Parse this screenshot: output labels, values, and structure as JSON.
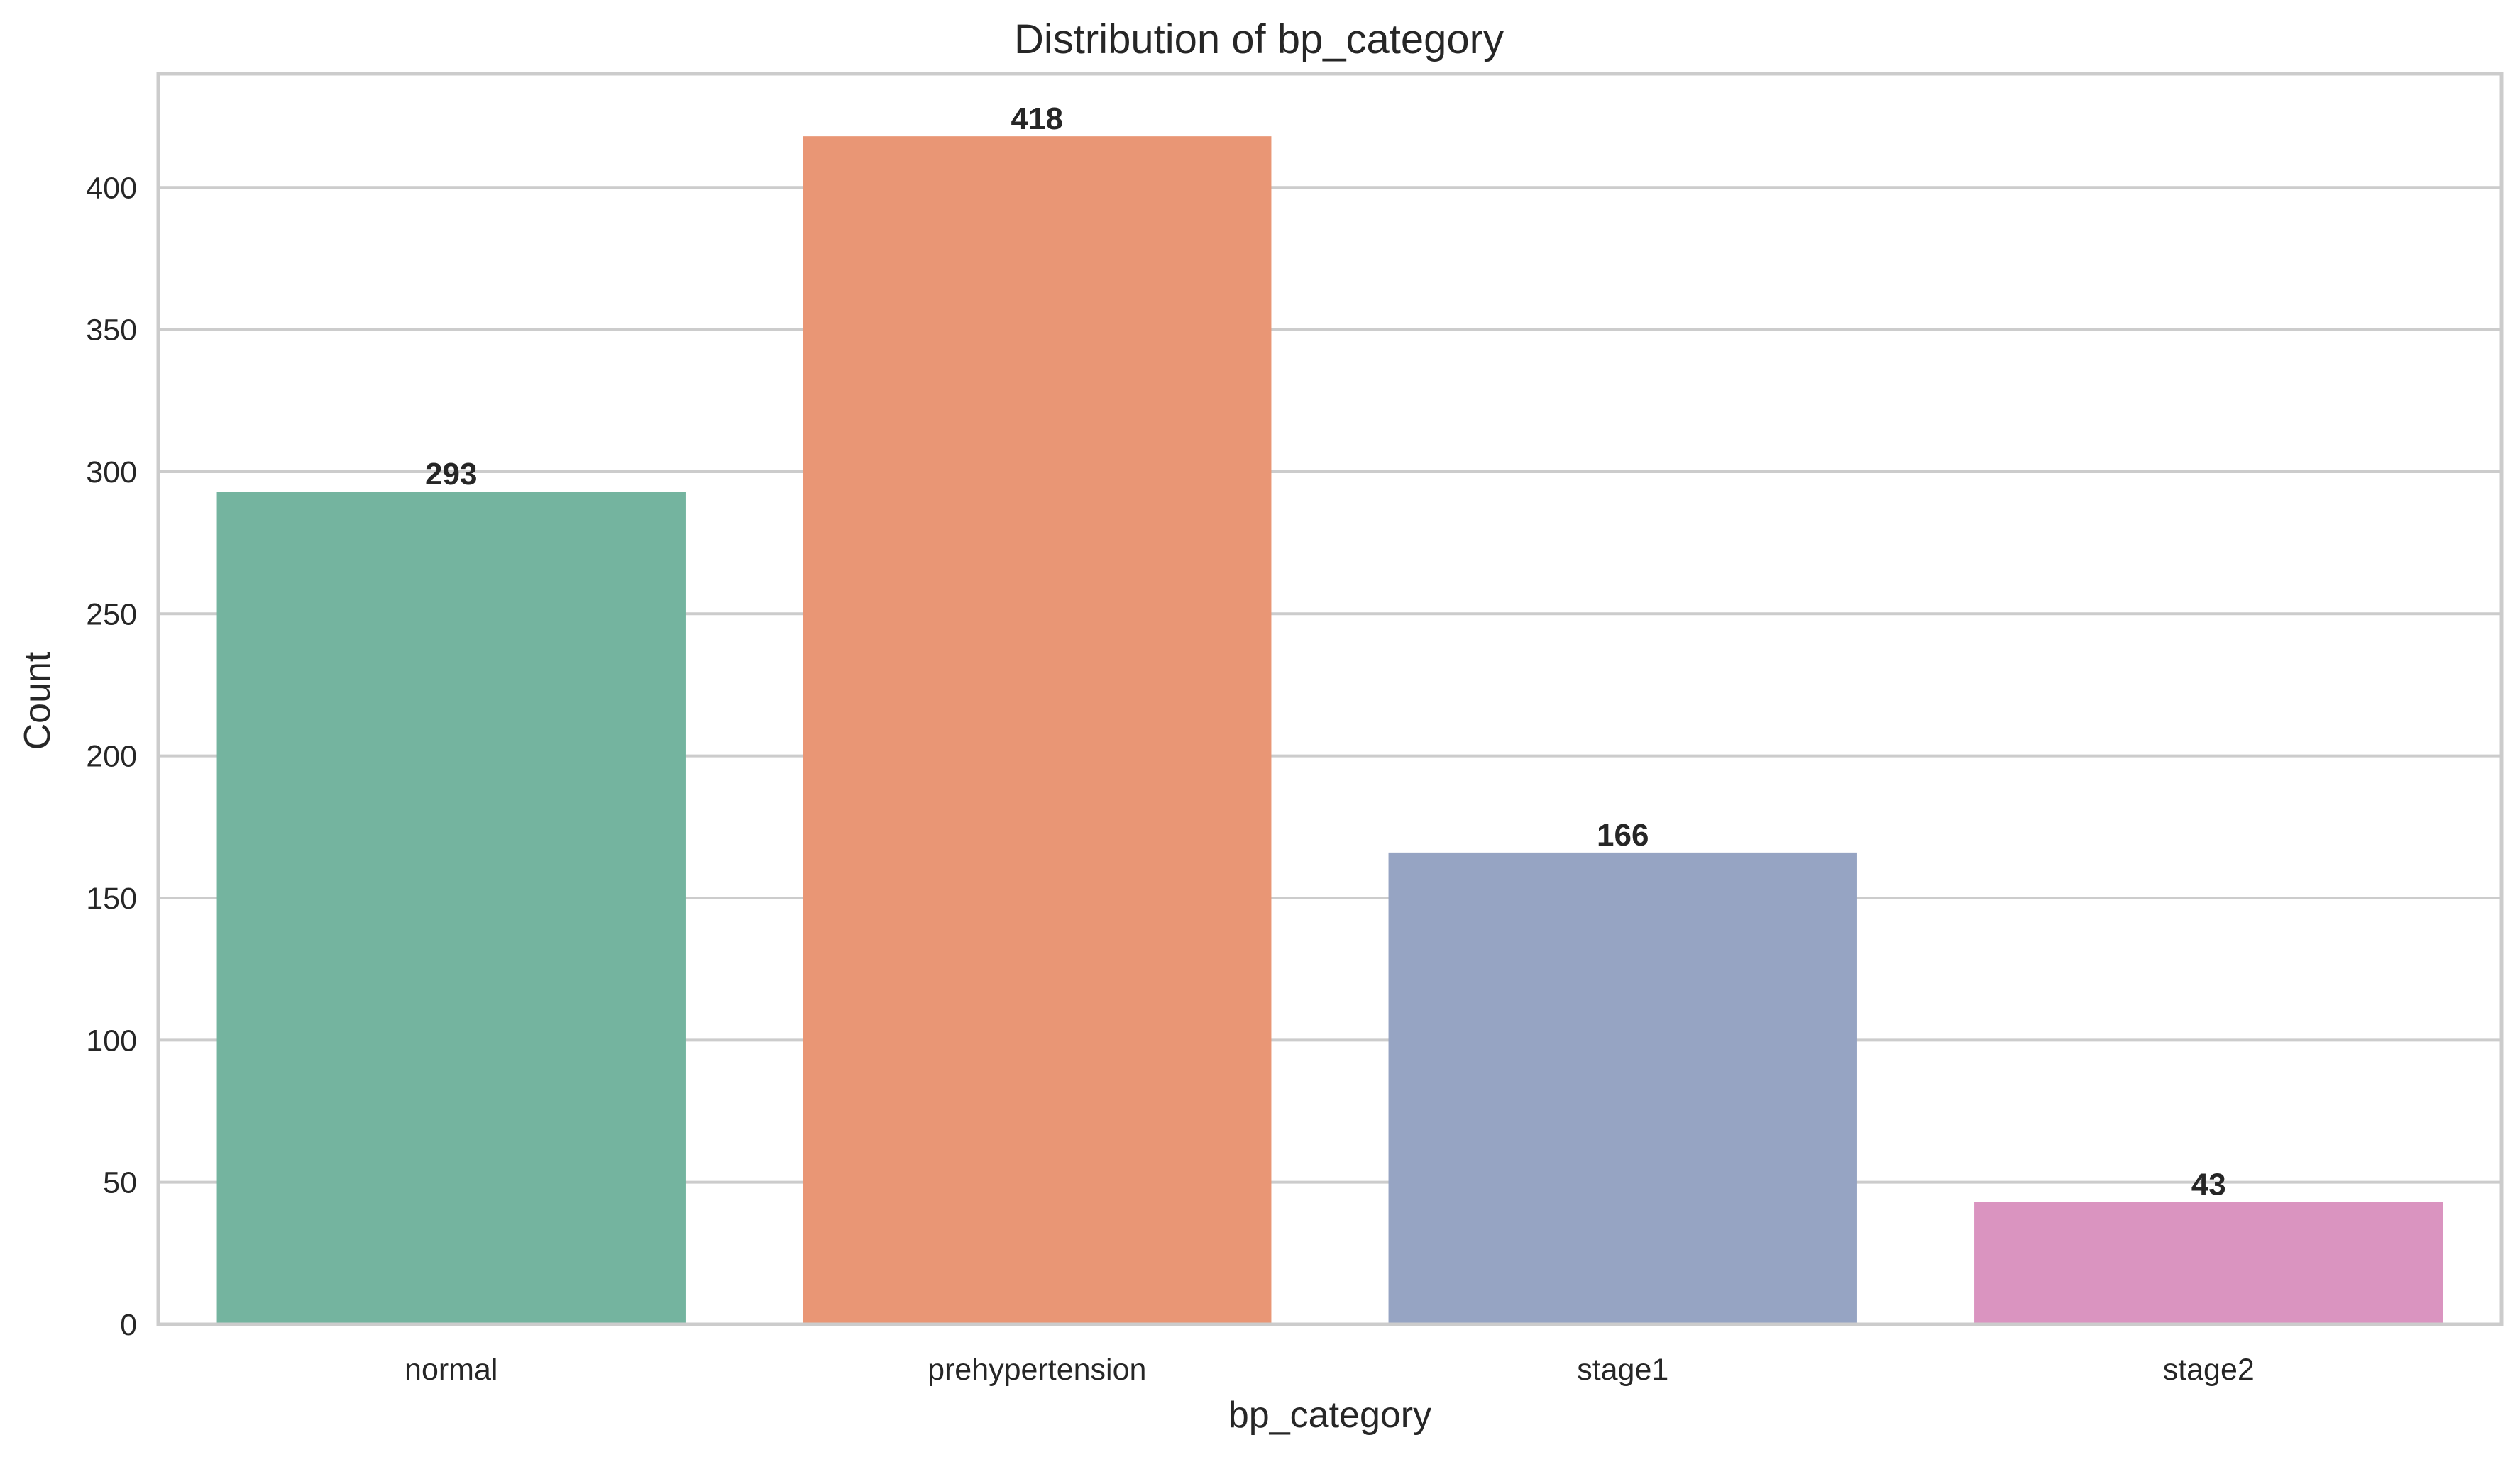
{
  "chart_data": {
    "type": "bar",
    "title": "Distribution of bp_category",
    "xlabel": "bp_category",
    "ylabel": "Count",
    "categories": [
      "normal",
      "prehypertension",
      "stage1",
      "stage2"
    ],
    "values": [
      293,
      418,
      166,
      43
    ],
    "data_labels": [
      "293",
      "418",
      "166",
      "43"
    ],
    "colors": [
      "#74b49f",
      "#e99675",
      "#96a4c3",
      "#da94c0"
    ],
    "ylim": [
      0,
      440
    ],
    "yticks": [
      0,
      50,
      100,
      150,
      200,
      250,
      300,
      350,
      400
    ],
    "grid": "horizontal",
    "legend": "none"
  }
}
